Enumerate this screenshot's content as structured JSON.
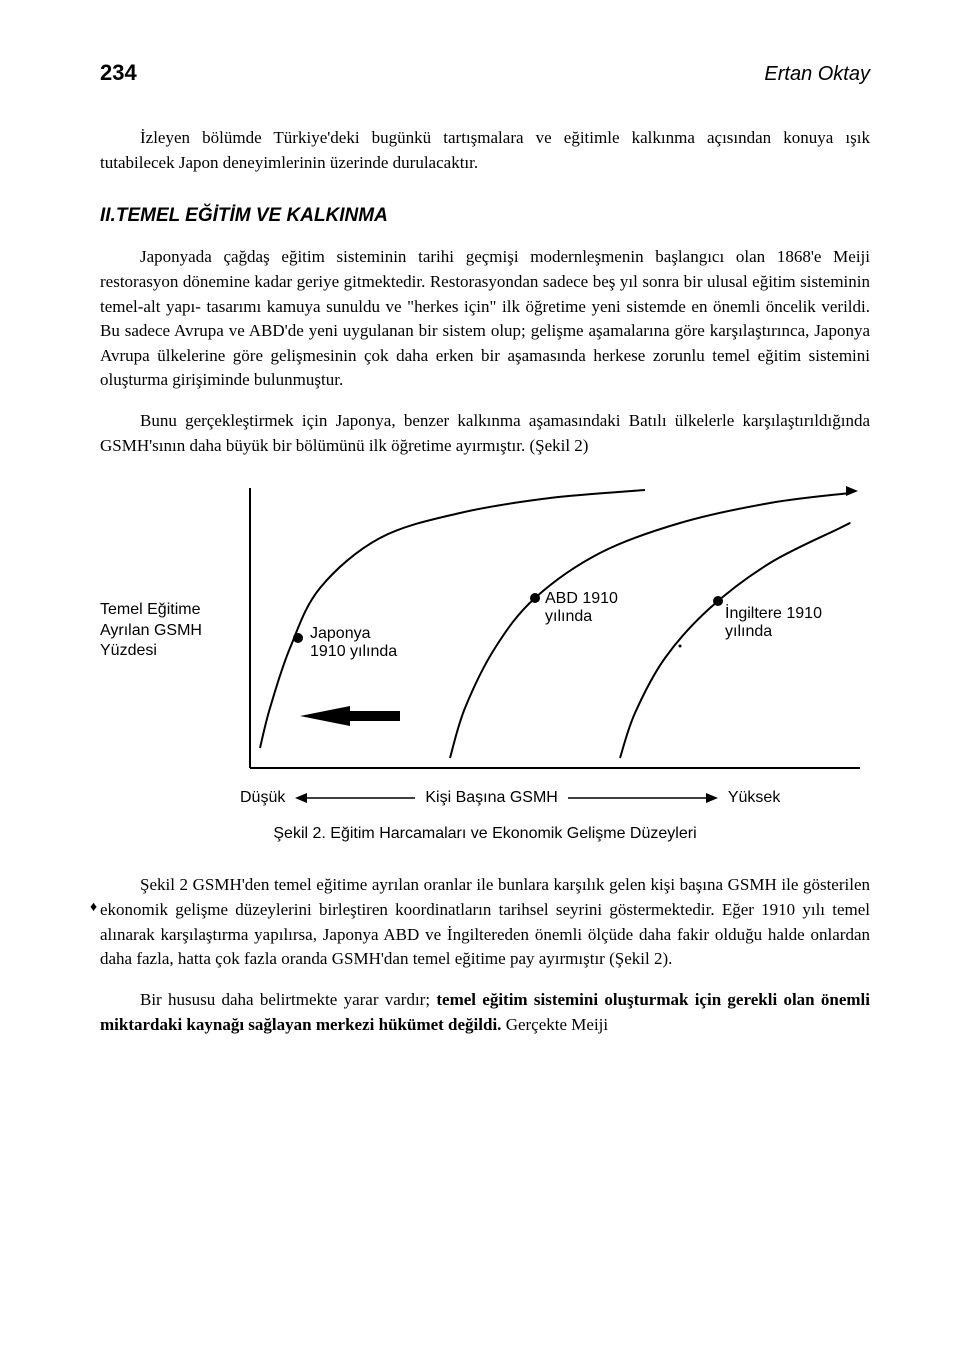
{
  "header": {
    "page_number": "234",
    "author": "Ertan Oktay"
  },
  "intro": "İzleyen bölümde Türkiye'deki bugünkü tartışmalara ve eğitimle kalkınma açısından konuya ışık tutabilecek Japon deneyimlerinin üzerinde durulacaktır.",
  "section_title": "II.TEMEL EĞİTİM VE KALKINMA",
  "para1": "Japonyada çağdaş eğitim sisteminin tarihi geçmişi modernleşmenin başlangıcı olan 1868'e Meiji restorasyon dönemine kadar geriye gitmektedir. Restorasyondan sadece beş yıl sonra bir ulusal eğitim sisteminin temel-alt yapı- tasarımı kamuya sunuldu ve \"herkes için\" ilk öğretime yeni sistemde en önemli öncelik verildi. Bu sadece Avrupa ve ABD'de yeni uygulanan bir sistem olup; gelişme aşamalarına göre karşılaştırınca, Japonya Avrupa ülkelerine göre gelişmesinin çok daha erken bir aşamasında herkese zorunlu temel eğitim sistemini oluşturma girişiminde bulunmuştur.",
  "para2": "Bunu gerçekleştirmek için Japonya, benzer kalkınma aşamasındaki Batılı ülkelerle karşılaştırıldığında GSMH'sının daha büyük bir bölümünü ilk öğretime ayırmıştır. (Şekil 2)",
  "chart": {
    "type": "line",
    "y_label_line1": "Temel Eğitime",
    "y_label_line2": "Ayrılan GSMH",
    "y_label_line3": "Yüzdesi",
    "curve_labels": {
      "japan": "Japonya",
      "japan_year": "1910 yılında",
      "usa": "ABD 1910",
      "usa_year": "yılında",
      "england": "İngiltere 1910",
      "england_year": "yılında"
    },
    "x_axis": {
      "left_label": "Düşük",
      "center_label": "Kişi Başına GSMH",
      "right_label": "Yüksek"
    },
    "colors": {
      "line": "#000000",
      "background": "#ffffff",
      "arrow_fill": "#000000",
      "marker_fill": "#000000"
    },
    "stroke_width": 2,
    "curves": {
      "japan": [
        [
          20,
          270
        ],
        [
          30,
          230
        ],
        [
          50,
          170
        ],
        [
          80,
          110
        ],
        [
          140,
          60
        ],
        [
          220,
          35
        ],
        [
          310,
          20
        ],
        [
          405,
          12
        ]
      ],
      "usa": [
        [
          210,
          280
        ],
        [
          225,
          230
        ],
        [
          255,
          170
        ],
        [
          295,
          120
        ],
        [
          360,
          75
        ],
        [
          440,
          45
        ],
        [
          530,
          25
        ],
        [
          610,
          15
        ]
      ],
      "england": [
        [
          380,
          280
        ],
        [
          395,
          235
        ],
        [
          425,
          180
        ],
        [
          470,
          130
        ],
        [
          530,
          85
        ],
        [
          600,
          50
        ],
        [
          610,
          45
        ]
      ]
    },
    "markers": {
      "japan": [
        58,
        160
      ],
      "usa": [
        295,
        120
      ],
      "england": [
        478,
        123
      ]
    },
    "arrow_polygon": "60,238 110,228 110,248",
    "arrow_shaft": [
      [
        110,
        238
      ],
      [
        160,
        238
      ]
    ],
    "axis": {
      "y_line": [
        [
          10,
          10
        ],
        [
          10,
          290
        ]
      ],
      "x_line": [
        [
          10,
          290
        ],
        [
          620,
          290
        ]
      ]
    },
    "top_arrow_end": [
      610,
      13
    ]
  },
  "figure_caption": "Şekil 2. Eğitim Harcamaları ve Ekonomik Gelişme Düzeyleri",
  "para3": "Şekil 2 GSMH'den temel eğitime ayrılan oranlar ile bunlara karşılık gelen kişi başına GSMH ile gösterilen ekonomik gelişme düzeylerini birleştiren koordinatların tarihsel seyrini göstermektedir. Eğer 1910 yılı temel alınarak karşılaştırma yapılırsa, Japonya ABD ve İngiltereden önemli ölçüde daha fakir olduğu halde onlardan daha fazla, hatta çok fazla oranda GSMH'dan temel eğitime pay ayırmıştır (Şekil 2).",
  "para4_pre": "Bir hususu daha belirtmekte yarar vardır; ",
  "para4_bold": "temel eğitim sistemini oluşturmak için gerekli olan önemli miktardaki kaynağı sağlayan merkezi hükümet değildi.",
  "para4_post": " Gerçekte Meiji"
}
